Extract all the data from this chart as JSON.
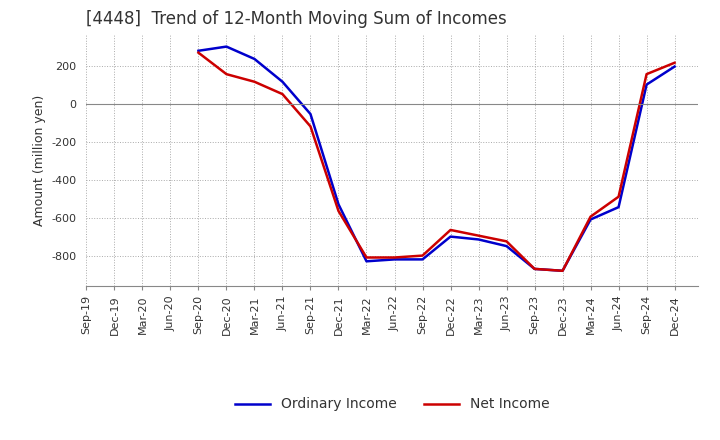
{
  "title": "[4448]  Trend of 12-Month Moving Sum of Incomes",
  "ylabel": "Amount (million yen)",
  "background_color": "#ffffff",
  "grid_color": "#aaaaaa",
  "x_labels": [
    "Sep-19",
    "Dec-19",
    "Mar-20",
    "Jun-20",
    "Sep-20",
    "Dec-20",
    "Mar-21",
    "Jun-21",
    "Sep-21",
    "Dec-21",
    "Mar-22",
    "Jun-22",
    "Sep-22",
    "Dec-22",
    "Mar-23",
    "Jun-23",
    "Sep-23",
    "Dec-23",
    "Mar-24",
    "Jun-24",
    "Sep-24",
    "Dec-24"
  ],
  "ordinary_income": [
    null,
    null,
    null,
    null,
    278,
    300,
    235,
    115,
    -55,
    -530,
    -830,
    -820,
    -820,
    -700,
    -715,
    -750,
    -870,
    -880,
    -610,
    -545,
    100,
    195
  ],
  "net_income": [
    null,
    null,
    null,
    null,
    268,
    155,
    115,
    50,
    -120,
    -565,
    -810,
    -810,
    -800,
    -665,
    -695,
    -725,
    -870,
    -880,
    -595,
    -490,
    155,
    215
  ],
  "ordinary_color": "#0000cc",
  "net_color": "#cc0000",
  "ylim": [
    -960,
    360
  ],
  "yticks": [
    -800,
    -600,
    -400,
    -200,
    0,
    200
  ],
  "title_color": "#333333",
  "tick_color": "#333333",
  "line_width": 1.8,
  "legend_fontsize": 10,
  "title_fontsize": 12,
  "axis_fontsize": 9,
  "tick_fontsize": 8
}
